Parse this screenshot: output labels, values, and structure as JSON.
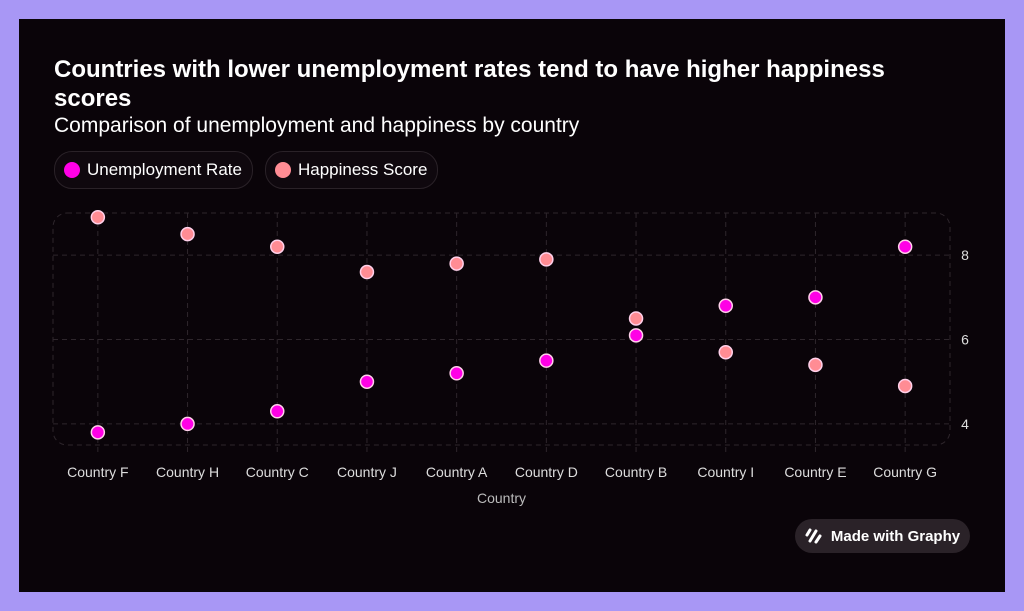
{
  "chart_data": {
    "type": "scatter",
    "title": "Countries with lower unemployment rates tend to have higher happiness scores",
    "subtitle": "Comparison of unemployment and happiness by country",
    "xlabel": "Country",
    "ylabel": "",
    "categories": [
      "Country F",
      "Country H",
      "Country C",
      "Country J",
      "Country A",
      "Country D",
      "Country B",
      "Country I",
      "Country E",
      "Country G"
    ],
    "series": [
      {
        "name": "Unemployment Rate",
        "color": "#ff00e6",
        "values": [
          3.8,
          4.0,
          4.3,
          5.0,
          5.2,
          5.5,
          6.1,
          6.8,
          7.0,
          8.2
        ]
      },
      {
        "name": "Happiness Score",
        "color": "#ff8c94",
        "values": [
          8.9,
          8.5,
          8.2,
          7.6,
          7.8,
          7.9,
          6.5,
          5.7,
          5.4,
          4.9
        ]
      }
    ],
    "yticks": [
      4,
      6,
      8
    ],
    "ylim": [
      3.5,
      9.0
    ],
    "grid": true,
    "legend_position": "top-left"
  },
  "badge": {
    "label": "Made with Graphy",
    "icon": "graphy-logo-icon"
  }
}
